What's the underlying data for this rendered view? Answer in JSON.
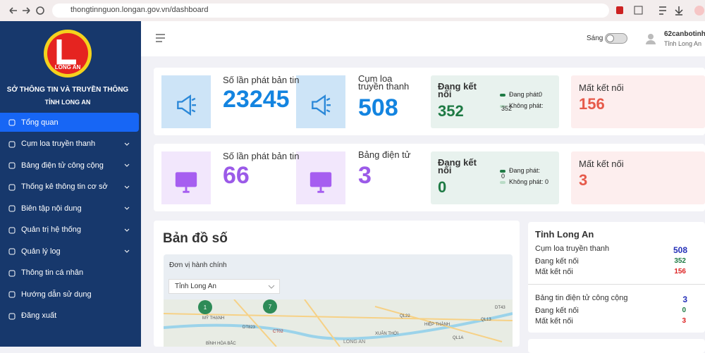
{
  "browser": {
    "url": "thongtinnguon.longan.gov.vn/dashboard"
  },
  "sidebar": {
    "logo_text": "LONG AN",
    "org": "SỞ THÔNG TIN VÀ TRUYỀN THÔNG",
    "province": "TỈNH LONG AN",
    "menu": [
      {
        "label": "Tổng quan",
        "active": true,
        "has_submenu": false
      },
      {
        "label": "Cụm loa truyền thanh",
        "active": false,
        "has_submenu": true
      },
      {
        "label": "Bảng điện tử công cộng",
        "active": false,
        "has_submenu": true
      },
      {
        "label": "Thống kê thông tin cơ sở",
        "active": false,
        "has_submenu": true
      },
      {
        "label": "Biên tập nội dung",
        "active": false,
        "has_submenu": true
      },
      {
        "label": "Quản trị hệ thống",
        "active": false,
        "has_submenu": true
      },
      {
        "label": "Quản lý log",
        "active": false,
        "has_submenu": true
      },
      {
        "label": "Thông tin cá nhân",
        "active": false,
        "has_submenu": false
      },
      {
        "label": "Hướng dẫn sử dụng",
        "active": false,
        "has_submenu": false
      },
      {
        "label": "Đăng xuất",
        "active": false,
        "has_submenu": false
      }
    ]
  },
  "header": {
    "theme_label": "Sáng",
    "user": "62canbotinh",
    "user_unit": "Tỉnh Long An"
  },
  "rows": [
    {
      "count_label": "Số lần phát bản tin",
      "count": 23245,
      "device_label": "Cụm loa truyền thanh",
      "device_count": 508,
      "connected_label": "Đang kết nối",
      "connected": 352,
      "playing_label": "Đang phát:",
      "playing": 0,
      "idle_label": "Không phát:",
      "idle": 352,
      "lost_label": "Mất kết nối",
      "lost": 156
    },
    {
      "count_label": "Số lần phát bản tin",
      "count": 66,
      "device_label": "Bảng điện tử",
      "device_count": 3,
      "connected_label": "Đang kết nối",
      "connected": 0,
      "playing_label": "Đang phát:",
      "playing": 0,
      "idle_label": "Không phát:",
      "idle": 0,
      "lost_label": "Mất kết nối",
      "lost": 3
    }
  ],
  "map": {
    "title": "Bản đồ số",
    "filter_label": "Đơn vị hành chính",
    "select": "Tỉnh Long An",
    "markers": [
      1,
      7
    ],
    "labels": [
      "MỸ THẠNH",
      "DT823",
      "CT02",
      "QL22",
      "HIỆP THÀNH",
      "XUÂN THỚI",
      "DT43",
      "QL13",
      "QL1A",
      "BÌNH HÒA BẮC",
      "LONG AN"
    ]
  },
  "summary": {
    "title": "Tỉnh Long An",
    "groups": [
      {
        "label": "Cụm loa truyền thanh",
        "total": 508,
        "connected_label": "Đang kết nối",
        "connected": 352,
        "lost_label": "Mất kết nối",
        "lost": 156
      },
      {
        "label": "Bảng tin điện tử công cộng",
        "total": 3,
        "connected_label": "Đang kết nối",
        "connected": 0,
        "lost_label": "Mất kết nối",
        "lost": 3
      }
    ]
  }
}
